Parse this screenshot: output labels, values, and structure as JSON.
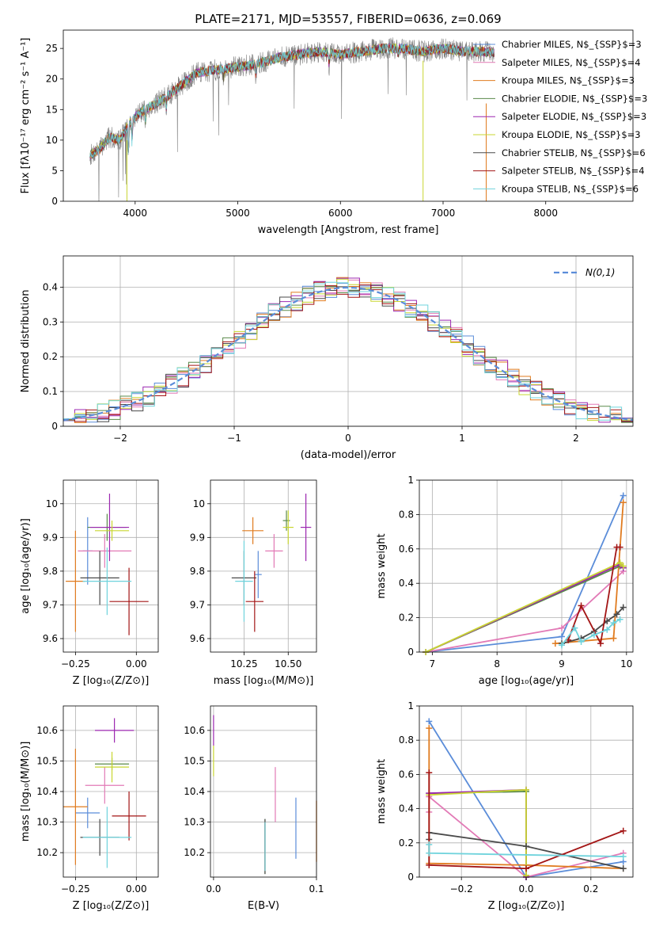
{
  "figure": {
    "title": "PLATE=2171, MJD=53557, FIBERID=0636, z=0.069"
  },
  "colors": {
    "Chabrier MILES": "#5b8dd9",
    "Salpeter MILES": "#e27ab6",
    "Kroupa MILES": "#e07b1f",
    "Chabrier ELODIE": "#5a8a4a",
    "Salpeter ELODIE": "#9c27b0",
    "Kroupa ELODIE": "#c8d630",
    "Chabrier STELIB": "#4a4a4a",
    "Salpeter STELIB": "#a31515",
    "Kroupa STELIB": "#6fd3dc"
  },
  "chart_data": [
    {
      "id": "spectrum",
      "type": "line",
      "xlabel": "wavelength [Angstrom, rest frame]",
      "ylabel": "Flux [fλ10⁻¹⁷ erg cm⁻² s⁻¹ A⁻¹]",
      "xlim": [
        3300,
        8850
      ],
      "ylim": [
        0,
        28
      ],
      "xticks": [
        4000,
        5000,
        6000,
        7000,
        8000
      ],
      "yticks": [
        0,
        5,
        10,
        15,
        20,
        25
      ],
      "grid": false,
      "legend_position": "top-right",
      "continuum": {
        "x": [
          3560,
          3650,
          3750,
          3850,
          3950,
          4050,
          4150,
          4300,
          4450,
          4600,
          4800,
          5000,
          5200,
          5400,
          5600,
          5800,
          6000,
          6200,
          6400,
          6600,
          6800,
          7000,
          7200,
          7400,
          7600,
          7800,
          8000,
          8200,
          8400,
          8600,
          8800
        ],
        "y": [
          7.5,
          8.5,
          10.5,
          10.0,
          13.0,
          14.5,
          15.5,
          17.0,
          19.0,
          21.0,
          21.5,
          22.0,
          22.5,
          23.5,
          24.0,
          24.5,
          24.0,
          24.5,
          25.0,
          25.0,
          24.5,
          25.0,
          24.5,
          24.5,
          24.0,
          23.5,
          23.0,
          22.5,
          22.0,
          21.5,
          21.0
        ]
      },
      "series": [
        {
          "name": "Chabrier MILES, N$_{SSP}$=3"
        },
        {
          "name": "Salpeter MILES, N$_{SSP}$=4"
        },
        {
          "name": "Kroupa MILES, N$_{SSP}$=3"
        },
        {
          "name": "Chabrier ELODIE, N$_{SSP}$=3"
        },
        {
          "name": "Salpeter ELODIE, N$_{SSP}$=3"
        },
        {
          "name": "Kroupa ELODIE, N$_{SSP}$=3"
        },
        {
          "name": "Chabrier STELIB, N$_{SSP}$=6"
        },
        {
          "name": "Salpeter STELIB, N$_{SSP}$=4"
        },
        {
          "name": "Kroupa STELIB, N$_{SSP}$=6"
        }
      ]
    },
    {
      "id": "residuals",
      "type": "line",
      "xlabel": "(data-model)/error",
      "ylabel": "Normed distribution",
      "xlim": [
        -2.5,
        2.5
      ],
      "ylim": [
        0,
        0.49
      ],
      "xticks": [
        -2,
        -1,
        0,
        1,
        2
      ],
      "yticks": [
        0.0,
        0.1,
        0.2,
        0.3,
        0.4
      ],
      "grid": true,
      "legend_position": "top-right",
      "legend_label": "N(0,1)",
      "gaussian": {
        "mu": 0,
        "sigma": 1
      }
    },
    {
      "id": "age_vs_Z",
      "type": "scatter",
      "xlabel": "Z [log₁₀(Z/Z⊙)]",
      "ylabel": "age [log₁₀(age/yr)]",
      "xlim": [
        -0.3,
        0.09
      ],
      "ylim": [
        9.56,
        10.07
      ],
      "xticks": [
        -0.25,
        0.0
      ],
      "xtick_labels": [
        "−0.25",
        "0.00"
      ],
      "yticks": [
        9.6,
        9.7,
        9.8,
        9.9,
        10.0
      ],
      "grid": true,
      "points": [
        {
          "series": "Chabrier MILES",
          "x": -0.2,
          "xerr": 0.02,
          "y": 9.86,
          "yerr": 0.1
        },
        {
          "series": "Salpeter MILES",
          "x": -0.13,
          "xerr": 0.11,
          "y": 9.86,
          "yerr": 0.05
        },
        {
          "series": "Kroupa MILES",
          "x": -0.25,
          "xerr": 0.04,
          "y": 9.77,
          "yerr": 0.15
        },
        {
          "series": "Chabrier ELODIE",
          "x": -0.12,
          "xerr": 0.08,
          "y": 9.93,
          "yerr": 0.04
        },
        {
          "series": "Salpeter ELODIE",
          "x": -0.11,
          "xerr": 0.08,
          "y": 9.93,
          "yerr": 0.1
        },
        {
          "series": "Kroupa ELODIE",
          "x": -0.1,
          "xerr": 0.07,
          "y": 9.92,
          "yerr": 0.03
        },
        {
          "series": "Chabrier STELIB",
          "x": -0.15,
          "xerr": 0.08,
          "y": 9.78,
          "yerr": 0.08
        },
        {
          "series": "Salpeter STELIB",
          "x": -0.03,
          "xerr": 0.08,
          "y": 9.71,
          "yerr": 0.1
        },
        {
          "series": "Kroupa STELIB",
          "x": -0.12,
          "xerr": 0.1,
          "y": 9.77,
          "yerr": 0.1
        }
      ]
    },
    {
      "id": "age_vs_mass",
      "type": "scatter",
      "xlabel": "mass [log₁₀(M/M⊙)]",
      "ylabel": "",
      "xlim": [
        10.06,
        10.66
      ],
      "ylim": [
        9.56,
        10.07
      ],
      "xticks": [
        10.25,
        10.5
      ],
      "xtick_labels": [
        "10.25",
        "10.50"
      ],
      "yticks": [
        9.6,
        9.7,
        9.8,
        9.9,
        10.0
      ],
      "grid": true,
      "points": [
        {
          "series": "Chabrier MILES",
          "x": 10.33,
          "xerr": 0.02,
          "y": 9.79,
          "yerr": 0.07
        },
        {
          "series": "Salpeter MILES",
          "x": 10.42,
          "xerr": 0.05,
          "y": 9.86,
          "yerr": 0.05
        },
        {
          "series": "Kroupa MILES",
          "x": 10.3,
          "xerr": 0.06,
          "y": 9.92,
          "yerr": 0.04
        },
        {
          "series": "Chabrier ELODIE",
          "x": 10.49,
          "xerr": 0.02,
          "y": 9.95,
          "yerr": 0.03
        },
        {
          "series": "Salpeter ELODIE",
          "x": 10.6,
          "xerr": 0.03,
          "y": 9.93,
          "yerr": 0.1
        },
        {
          "series": "Kroupa ELODIE",
          "x": 10.5,
          "xerr": 0.03,
          "y": 9.93,
          "yerr": 0.05
        },
        {
          "series": "Chabrier STELIB",
          "x": 10.25,
          "xerr": 0.07,
          "y": 9.78,
          "yerr": 0.08
        },
        {
          "series": "Salpeter STELIB",
          "x": 10.31,
          "xerr": 0.05,
          "y": 9.71,
          "yerr": 0.09
        },
        {
          "series": "Kroupa STELIB",
          "x": 10.25,
          "xerr": 0.05,
          "y": 9.77,
          "yerr": 0.12
        }
      ]
    },
    {
      "id": "mass_weight_vs_age",
      "type": "line",
      "xlabel": "age [log₁₀(age/yr)]",
      "ylabel": "mass weight",
      "xlim": [
        6.8,
        10.1
      ],
      "ylim": [
        0,
        1.0
      ],
      "xticks": [
        7,
        8,
        9,
        10
      ],
      "yticks": [
        0.0,
        0.2,
        0.4,
        0.6,
        0.8,
        1.0
      ],
      "grid": true,
      "series": [
        {
          "key": "Chabrier MILES",
          "x": [
            6.9,
            9.0,
            9.95
          ],
          "y": [
            0.0,
            0.09,
            0.91
          ]
        },
        {
          "key": "Salpeter MILES",
          "x": [
            6.9,
            9.0,
            9.95
          ],
          "y": [
            0.0,
            0.14,
            0.47
          ]
        },
        {
          "key": "Kroupa MILES",
          "x": [
            8.9,
            9.8,
            9.95
          ],
          "y": [
            0.05,
            0.08,
            0.87
          ]
        },
        {
          "key": "Chabrier ELODIE",
          "x": [
            6.9,
            9.9,
            9.95
          ],
          "y": [
            0.0,
            0.5,
            0.49
          ]
        },
        {
          "key": "Salpeter ELODIE",
          "x": [
            6.9,
            9.9,
            9.95
          ],
          "y": [
            0.0,
            0.51,
            0.49
          ]
        },
        {
          "key": "Kroupa ELODIE",
          "x": [
            6.9,
            9.9,
            9.95
          ],
          "y": [
            0.0,
            0.52,
            0.5
          ]
        },
        {
          "key": "Chabrier STELIB",
          "x": [
            9.0,
            9.3,
            9.5,
            9.7,
            9.85,
            9.95
          ],
          "y": [
            0.05,
            0.08,
            0.12,
            0.18,
            0.22,
            0.26
          ]
        },
        {
          "key": "Salpeter STELIB",
          "x": [
            9.1,
            9.3,
            9.6,
            9.85,
            9.9
          ],
          "y": [
            0.07,
            0.27,
            0.05,
            0.61,
            0.61
          ]
        },
        {
          "key": "Kroupa STELIB",
          "x": [
            9.0,
            9.2,
            9.3,
            9.5,
            9.7,
            9.8,
            9.9
          ],
          "y": [
            0.04,
            0.14,
            0.06,
            0.1,
            0.13,
            0.17,
            0.19
          ]
        }
      ]
    },
    {
      "id": "mass_vs_Z",
      "type": "scatter",
      "xlabel": "Z [log₁₀(Z/Z⊙)]",
      "ylabel": "mass [log₁₀(M/M⊙)]",
      "xlim": [
        -0.3,
        0.09
      ],
      "ylim": [
        10.12,
        10.68
      ],
      "xticks": [
        -0.25,
        0.0
      ],
      "xtick_labels": [
        "−0.25",
        "0.00"
      ],
      "yticks": [
        10.2,
        10.3,
        10.4,
        10.5,
        10.6
      ],
      "grid": true,
      "points": [
        {
          "series": "Chabrier MILES",
          "x": -0.2,
          "xerr": 0.05,
          "y": 10.33,
          "yerr": 0.05
        },
        {
          "series": "Salpeter MILES",
          "x": -0.13,
          "xerr": 0.08,
          "y": 10.42,
          "yerr": 0.06
        },
        {
          "series": "Kroupa MILES",
          "x": -0.25,
          "xerr": 0.05,
          "y": 10.35,
          "yerr": 0.19
        },
        {
          "series": "Chabrier ELODIE",
          "x": -0.1,
          "xerr": 0.07,
          "y": 10.49,
          "yerr": 0.02
        },
        {
          "series": "Salpeter ELODIE",
          "x": -0.09,
          "xerr": 0.08,
          "y": 10.6,
          "yerr": 0.04
        },
        {
          "series": "Kroupa ELODIE",
          "x": -0.1,
          "xerr": 0.07,
          "y": 10.48,
          "yerr": 0.05
        },
        {
          "series": "Chabrier STELIB",
          "x": -0.15,
          "xerr": 0.08,
          "y": 10.25,
          "yerr": 0.06
        },
        {
          "series": "Salpeter STELIB",
          "x": -0.03,
          "xerr": 0.07,
          "y": 10.32,
          "yerr": 0.08
        },
        {
          "series": "Kroupa STELIB",
          "x": -0.12,
          "xerr": 0.1,
          "y": 10.25,
          "yerr": 0.1
        }
      ]
    },
    {
      "id": "mass_vs_ebv",
      "type": "scatter",
      "xlabel": "E(B-V)",
      "ylabel": "",
      "xlim": [
        -0.003,
        0.1
      ],
      "ylim": [
        10.12,
        10.68
      ],
      "xticks": [
        0.0,
        0.1
      ],
      "xtick_labels": [
        "0.0",
        "0.1"
      ],
      "yticks": [
        10.2,
        10.3,
        10.4,
        10.5,
        10.6
      ],
      "grid": true,
      "points": [
        {
          "series": "Chabrier MILES",
          "x": 0.08,
          "y": 10.28,
          "yerr": 0.1
        },
        {
          "series": "Salpeter MILES",
          "x": 0.06,
          "y": 10.39,
          "yerr": 0.09
        },
        {
          "series": "Kroupa MILES",
          "x": 0.1,
          "y": 10.27,
          "yerr": 0.1
        },
        {
          "series": "Chabrier ELODIE",
          "x": 0.05,
          "y": 10.22,
          "yerr": 0.09
        },
        {
          "series": "Salpeter ELODIE",
          "x": 0.0,
          "y": 10.6,
          "yerr": 0.05
        },
        {
          "series": "Kroupa ELODIE",
          "x": 0.0,
          "y": 10.5,
          "yerr": 0.05
        },
        {
          "series": "Chabrier STELIB",
          "x": 0.05,
          "y": 10.22,
          "yerr": 0.09
        },
        {
          "series": "Salpeter STELIB",
          "x": 0.05,
          "y": 10.22,
          "yerr": 0.08
        },
        {
          "series": "Kroupa STELIB",
          "x": 0.05,
          "y": 10.22,
          "yerr": 0.08
        }
      ]
    },
    {
      "id": "mass_weight_vs_Z",
      "type": "line",
      "xlabel": "Z [log₁₀(Z/Z⊙)]",
      "ylabel": "mass weight",
      "xlim": [
        -0.33,
        0.33
      ],
      "ylim": [
        0,
        1.0
      ],
      "xticks": [
        -0.2,
        0.0,
        0.2
      ],
      "xtick_labels": [
        "−0.2",
        "0.0",
        "0.2"
      ],
      "yticks": [
        0.0,
        0.2,
        0.4,
        0.6,
        0.8,
        1.0
      ],
      "grid": true,
      "series": [
        {
          "key": "Chabrier MILES",
          "x": [
            -0.3,
            0.0,
            0.3
          ],
          "y": [
            0.91,
            0.0,
            0.09
          ]
        },
        {
          "key": "Salpeter MILES",
          "x": [
            -0.3,
            -0.3,
            0.0,
            0.3
          ],
          "y": [
            0.38,
            0.47,
            0.0,
            0.14
          ]
        },
        {
          "key": "Kroupa MILES",
          "x": [
            -0.3,
            -0.3,
            0.0,
            0.3
          ],
          "y": [
            0.87,
            0.08,
            0.07,
            0.05
          ]
        },
        {
          "key": "Chabrier ELODIE",
          "x": [
            -0.3,
            0.0,
            0.0
          ],
          "y": [
            0.49,
            0.5,
            0.01
          ]
        },
        {
          "key": "Salpeter ELODIE",
          "x": [
            -0.3,
            0.0,
            0.0
          ],
          "y": [
            0.49,
            0.51,
            0.0
          ]
        },
        {
          "key": "Kroupa ELODIE",
          "x": [
            -0.3,
            0.0,
            0.0
          ],
          "y": [
            0.48,
            0.51,
            0.01
          ]
        },
        {
          "key": "Chabrier STELIB",
          "x": [
            -0.3,
            -0.3,
            0.0,
            0.3
          ],
          "y": [
            0.22,
            0.26,
            0.18,
            0.05
          ]
        },
        {
          "key": "Salpeter STELIB",
          "x": [
            -0.3,
            -0.3,
            0.0,
            0.3
          ],
          "y": [
            0.61,
            0.07,
            0.05,
            0.27
          ]
        },
        {
          "key": "Kroupa STELIB",
          "x": [
            -0.3,
            -0.3,
            0.3
          ],
          "y": [
            0.19,
            0.14,
            0.12
          ]
        }
      ]
    }
  ]
}
